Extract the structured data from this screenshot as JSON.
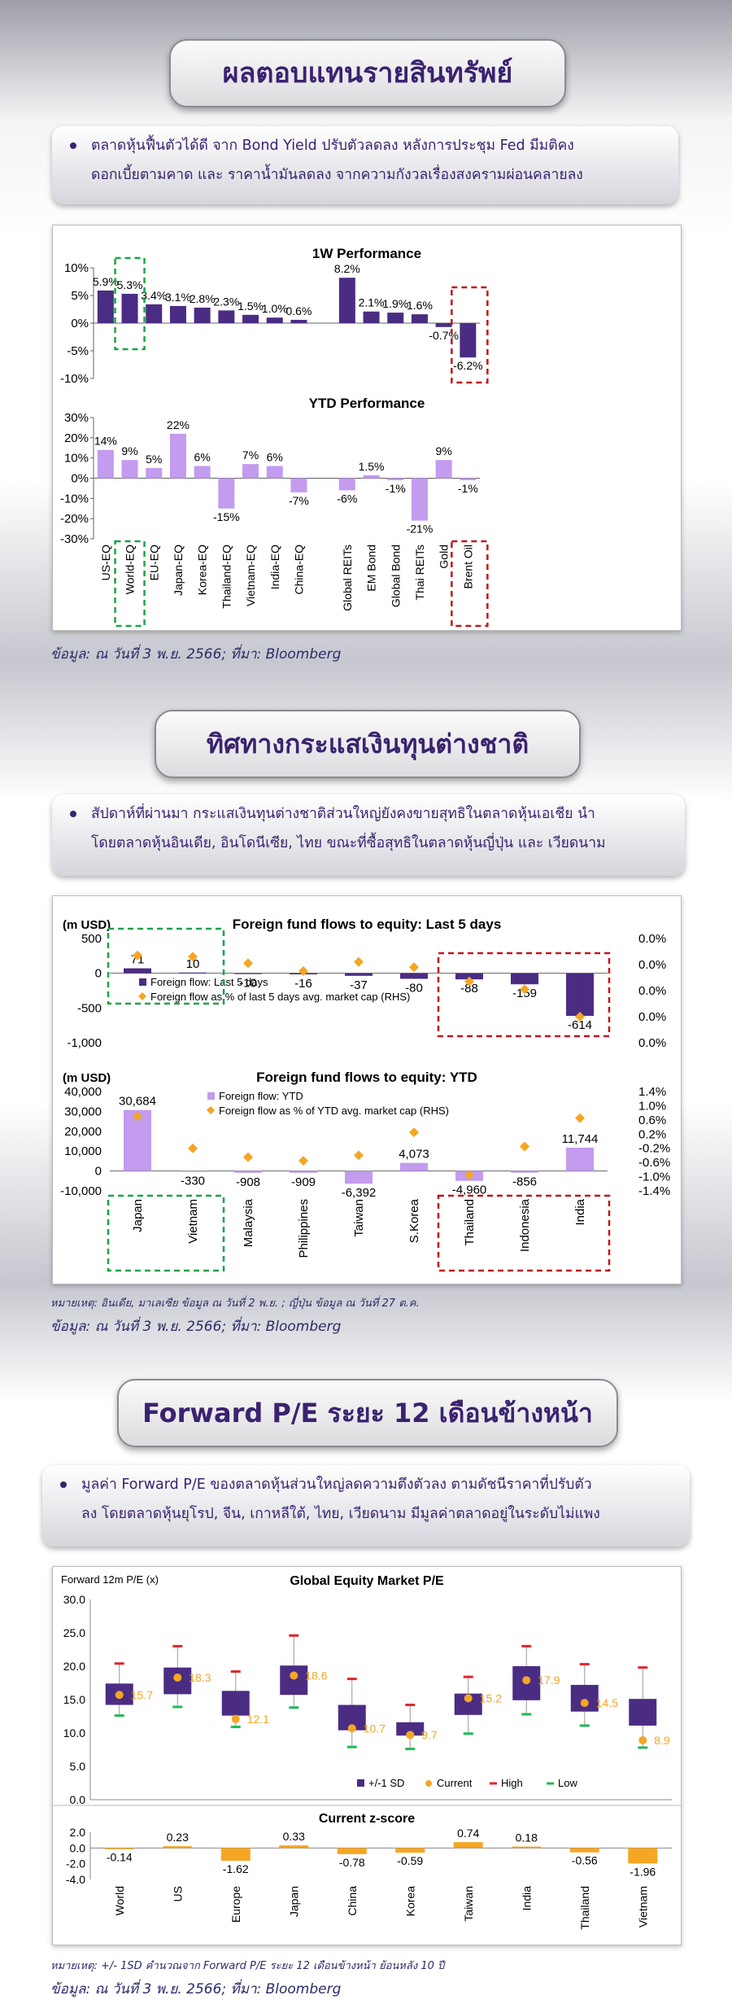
{
  "section1": {
    "title": "ผลตอบแทนรายสินทรัพย์",
    "bullet_line1": "ตลาดหุ้นฟื้นตัวได้ดี จาก  Bond  Yield  ปรับตัวลดลง หลังการประชุม Fed มีมติคง",
    "bullet_line2": "ดอกเบี้ยตามคาด และ ราคาน้ำมันลดลง จากความกังวลเรื่องสงครามผ่อนคลายลง",
    "source": "ข้อมูล: ณ วันที่ 3 พ.ย. 2566; ที่มา: Bloomberg"
  },
  "section2": {
    "title": "ทิศทางกระแสเงินทุนต่างชาติ",
    "bullet_line1": "สัปดาห์ที่ผ่านมา กระแสเงินทุนต่างชาติส่วนใหญ่ยังคงขายสุทธิในตลาดหุ้นเอเชีย นำ",
    "bullet_line2": "โดยตลาดหุ้นอินเดีย, อินโดนีเซีย, ไทย ขณะที่ซื้อสุทธิในตลาดหุ้นญี่ปุ่น และ เวียดนาม",
    "note": "หมายเหตุ: อินเดีย, มาเลเซีย ข้อมูล ณ วันที่ 2 พ.ย. ; ญี่ปุ่น ข้อมูล ณ วันที่ 27 ต.ค.",
    "source": "ข้อมูล: ณ วันที่ 3 พ.ย. 2566; ที่มา: Bloomberg"
  },
  "section3": {
    "title": "Forward P/E ระยะ 12 เดือนข้างหน้า",
    "bullet_line1": "มูลค่า Forward P/E ของตลาดหุ้นส่วนใหญ่ลดความตึงตัวลง ตามดัชนีราคาที่ปรับตัว",
    "bullet_line2": "ลง โดยตลาดหุ้นยุโรป, จีน, เกาหลีใต้, ไทย, เวียดนาม มีมูลค่าตลาดอยู่ในระดับไม่แพง",
    "note": "หมายเหตุ: +/- 1SD คำนวณจาก Forward P/E ระยะ 12 เดือนข้างหน้า ย้อนหลัง 10 ปี",
    "source": "ข้อมูล: ณ วันที่ 3 พ.ย. 2566; ที่มา: Bloomberg"
  },
  "colors": {
    "purple": "#4b2c83",
    "lavender": "#c39bef",
    "orange": "#f5a623",
    "red": "#e0262b",
    "green": "#1db954",
    "dash_green": "#1aa34a",
    "dash_red": "#c0161b"
  },
  "chart_data": [
    {
      "id": "perf_1w",
      "type": "bar",
      "title": "1W Performance",
      "categories": [
        "US-EQ",
        "World-EQ",
        "EU-EQ",
        "Japan-EQ",
        "Korea-EQ",
        "Thailand-EQ",
        "Vietnam-EQ",
        "India-EQ",
        "China-EQ",
        "",
        "Global REITs",
        "EM Bond",
        "Global Bond",
        "Thai REITs",
        "Gold",
        "Brent Oil"
      ],
      "values": [
        5.9,
        5.3,
        3.4,
        3.1,
        2.8,
        2.3,
        1.5,
        1.0,
        0.6,
        null,
        8.2,
        2.1,
        1.9,
        1.6,
        -0.7,
        -6.2
      ],
      "labels": [
        "5.9%",
        "5.3%",
        "3.4%",
        "3.1%",
        "2.8%",
        "2.3%",
        "1.5%",
        "1.0%",
        "0.6%",
        "",
        "8.2%",
        "2.1%",
        "1.9%",
        "1.6%",
        "-0.7%",
        "-6.2%"
      ],
      "yticks": [
        "10%",
        "5%",
        "0%",
        "-5%",
        "-10%"
      ],
      "ylim": [
        -10,
        10
      ]
    },
    {
      "id": "perf_ytd",
      "type": "bar",
      "title": "YTD Performance",
      "categories": [
        "US-EQ",
        "World-EQ",
        "EU-EQ",
        "Japan-EQ",
        "Korea-EQ",
        "Thailand-EQ",
        "Vietnam-EQ",
        "India-EQ",
        "China-EQ",
        "",
        "Global REITs",
        "EM Bond",
        "Global Bond",
        "Thai REITs",
        "Gold",
        "Brent Oil"
      ],
      "values": [
        14,
        9,
        5,
        22,
        6,
        -15,
        7,
        6,
        -7,
        null,
        -6,
        1.5,
        -1,
        -21,
        9,
        -1
      ],
      "labels": [
        "14%",
        "9%",
        "5%",
        "22%",
        "6%",
        "-15%",
        "7%",
        "6%",
        "-7%",
        "",
        "-6%",
        "1.5%",
        "-1%",
        "-21%",
        "9%",
        "-1%"
      ],
      "yticks": [
        "30%",
        "20%",
        "10%",
        "0%",
        "-10%",
        "-20%",
        "-30%"
      ],
      "ylim": [
        -30,
        30
      ]
    },
    {
      "id": "flows_5d",
      "type": "bar",
      "title": "Foreign fund flows to equity: Last 5 days",
      "unit": "(m USD)",
      "categories": [
        "Japan",
        "Vietnam",
        "Malaysia",
        "Philippines",
        "Taiwan",
        "S.Korea",
        "Thailand",
        "Indonesia",
        "India"
      ],
      "values": [
        71,
        10,
        -10,
        -16,
        -37,
        -80,
        -88,
        -159,
        -614
      ],
      "labels": [
        "71",
        "10",
        "-10",
        "-16",
        "-37",
        "-80",
        "-88",
        "-159",
        "-614"
      ],
      "pct_mcap": [
        0.0002,
        0.0001,
        -0.0004,
        -0.001,
        -0.0003,
        -0.0007,
        -0.0018,
        -0.0024,
        -0.0045
      ],
      "yticks": [
        "500",
        "0",
        "-500",
        "-1,000"
      ],
      "ylim": [
        -1000,
        500
      ],
      "rticks": [
        "0.0%",
        "0.0%",
        "0.0%",
        "0.0%",
        "0.0%"
      ],
      "legend": [
        "Foreign flow: Last 5 days",
        "Foreign flow as % of last 5 days avg. market cap (RHS)"
      ]
    },
    {
      "id": "flows_ytd",
      "type": "bar",
      "title": "Foreign fund flows to equity: YTD",
      "unit": "(m USD)",
      "categories": [
        "Japan",
        "Vietnam",
        "Malaysia",
        "Philippines",
        "Taiwan",
        "S.Korea",
        "Thailand",
        "Indonesia",
        "India"
      ],
      "values": [
        30684,
        -330,
        -908,
        -909,
        -6392,
        4073,
        -4960,
        -856,
        11744
      ],
      "labels": [
        "30,684",
        "-330",
        "-908",
        "-909",
        "-6,392",
        "4,073",
        "-4,960",
        "-856",
        "11,744"
      ],
      "pct_mcap": [
        0.7,
        -0.2,
        -0.45,
        -0.55,
        -0.4,
        0.25,
        -0.95,
        -0.15,
        0.65
      ],
      "yticks": [
        "40,000",
        "30,000",
        "20,000",
        "10,000",
        "0",
        "-10,000"
      ],
      "ylim": [
        -10000,
        40000
      ],
      "rticks": [
        "1.4%",
        "1.0%",
        "0.6%",
        "0.2%",
        "-0.2%",
        "-0.6%",
        "-1.0%",
        "-1.4%"
      ],
      "legend": [
        "Foreign flow: YTD",
        "Foreign flow as % of YTD avg. market cap (RHS)"
      ]
    },
    {
      "id": "pe",
      "type": "box",
      "title": "Global Equity Market P/E",
      "ylabel": "Forward 12m P/E (x)",
      "categories": [
        "World",
        "US",
        "Europe",
        "Japan",
        "China",
        "Korea",
        "Taiwan",
        "India",
        "Thailand",
        "Vietnam"
      ],
      "sd_low": [
        14.2,
        15.8,
        12.6,
        15.7,
        10.4,
        9.6,
        12.7,
        14.9,
        13.2,
        11.1
      ],
      "sd_high": [
        17.4,
        19.8,
        16.3,
        20.1,
        14.2,
        11.6,
        15.9,
        20.0,
        17.2,
        15.1
      ],
      "current": [
        15.7,
        18.3,
        12.1,
        18.6,
        10.7,
        9.7,
        15.2,
        17.9,
        14.5,
        8.9
      ],
      "high": [
        20.4,
        23.0,
        19.2,
        24.6,
        18.1,
        14.2,
        18.4,
        23.0,
        20.3,
        19.8
      ],
      "low": [
        12.6,
        13.9,
        10.9,
        13.8,
        7.9,
        7.6,
        9.9,
        12.8,
        11.1,
        7.8
      ],
      "labels": [
        "15.7",
        "18.3",
        "12.1",
        "18.6",
        "10.7",
        "9.7",
        "15.2",
        "17.9",
        "14.5",
        "8.9"
      ],
      "yticks": [
        "30.0",
        "25.0",
        "20.0",
        "15.0",
        "10.0",
        "5.0",
        "0.0"
      ],
      "ylim": [
        0,
        30
      ],
      "legend": [
        "+/-1 SD",
        "Current",
        "High",
        "Low"
      ]
    },
    {
      "id": "zscore",
      "type": "bar",
      "title": "Current z-score",
      "categories": [
        "World",
        "US",
        "Europe",
        "Japan",
        "China",
        "Korea",
        "Taiwan",
        "India",
        "Thailand",
        "Vietnam"
      ],
      "values": [
        -0.14,
        0.23,
        -1.62,
        0.33,
        -0.78,
        -0.59,
        0.74,
        0.18,
        -0.56,
        -1.96
      ],
      "labels": [
        "-0.14",
        "0.23",
        "-1.62",
        "0.33",
        "-0.78",
        "-0.59",
        "0.74",
        "0.18",
        "-0.56",
        "-1.96"
      ],
      "yticks": [
        "2.0",
        "0.0",
        "-2.0",
        "-4.0"
      ],
      "ylim": [
        -4,
        2
      ]
    }
  ]
}
